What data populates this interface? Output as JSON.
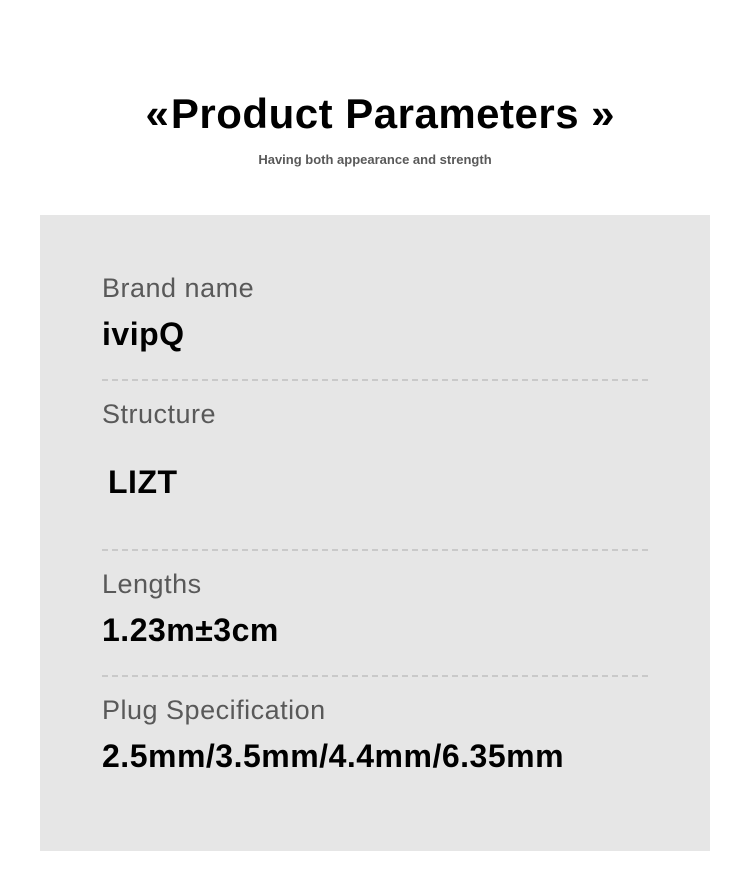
{
  "header": {
    "title": "Product Parameters",
    "subtitle": "Having both appearance and strength"
  },
  "params": {
    "brand": {
      "label": "Brand name",
      "value": "ivipQ"
    },
    "structure": {
      "label": "Structure",
      "value": "LIZT"
    },
    "lengths": {
      "label": "Lengths",
      "value": "1.23m±3cm"
    },
    "plug": {
      "label": "Plug Specification",
      "value": "2.5mm/3.5mm/4.4mm/6.35mm"
    }
  },
  "colors": {
    "panel_bg": "#e6e6e6",
    "label_color": "#595959",
    "value_color": "#000000",
    "divider_color": "#c9c9c9"
  }
}
